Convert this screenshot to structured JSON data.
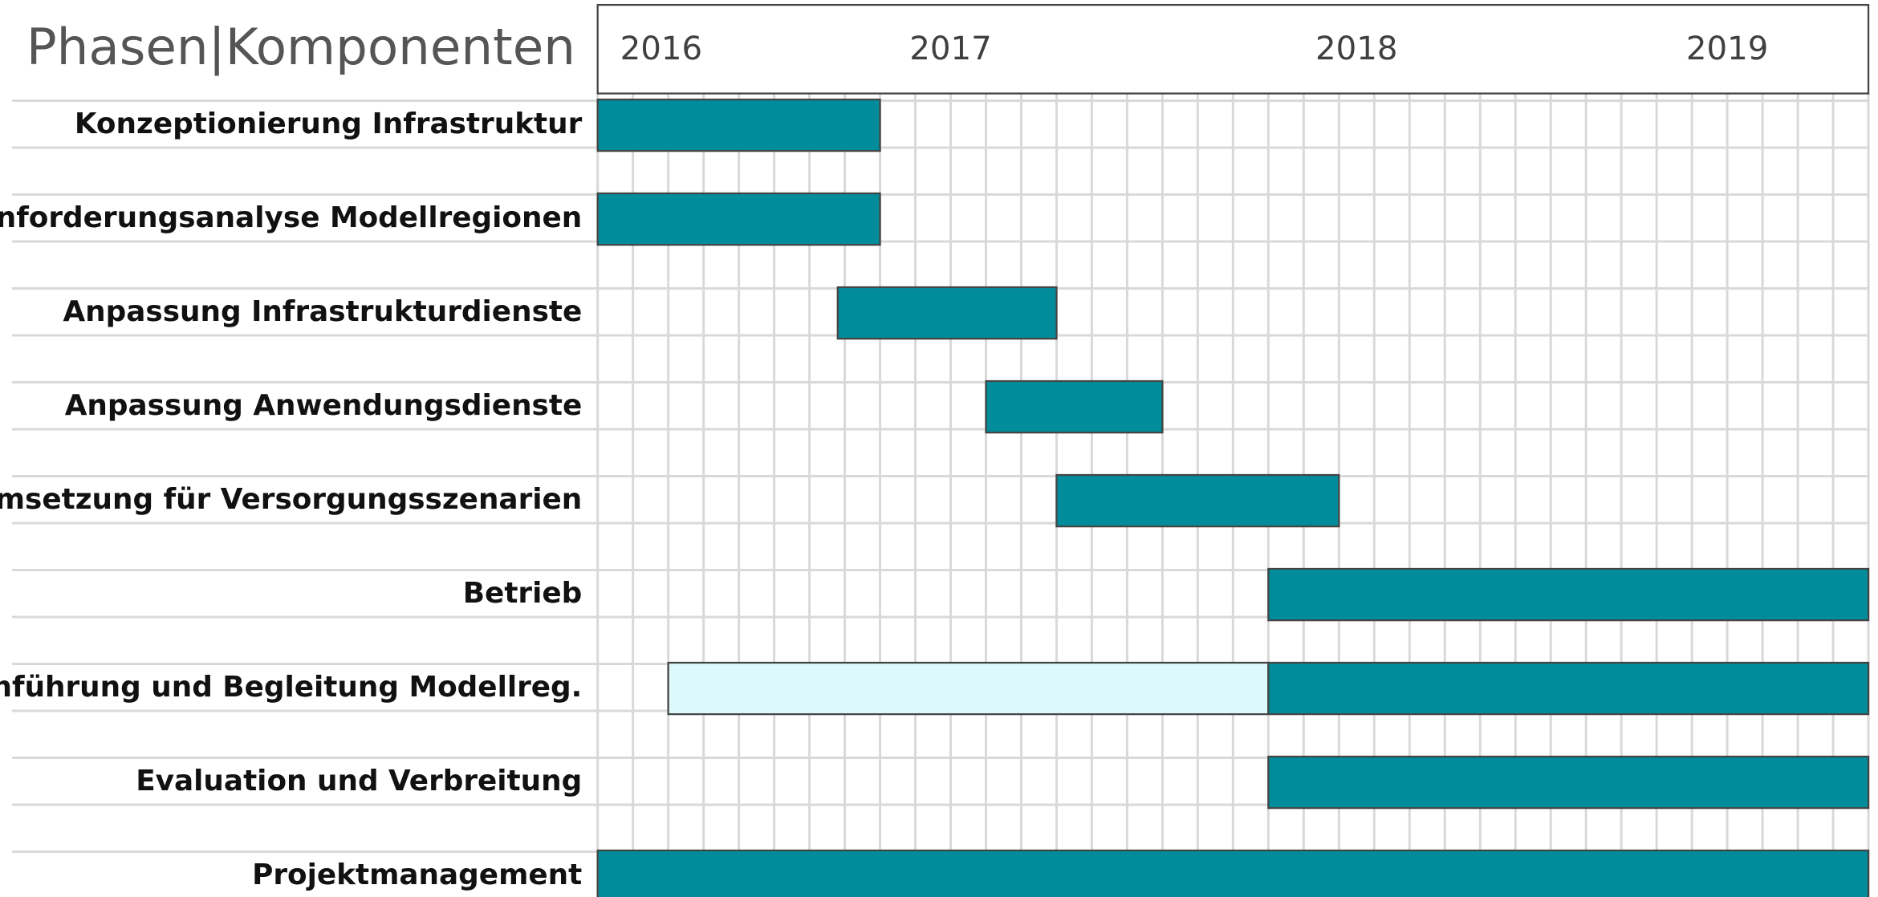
{
  "chart_data": {
    "type": "gantt",
    "title": "Phasen|Komponenten",
    "xlim": [
      0,
      36
    ],
    "xticks": [
      {
        "value": 1.8,
        "label": "2016"
      },
      {
        "value": 10,
        "label": "2017"
      },
      {
        "value": 21.5,
        "label": "2018"
      },
      {
        "value": 32,
        "label": "2019"
      }
    ],
    "grid": true,
    "tasks": [
      {
        "name": "Konzeptionierung Infrastruktur",
        "segments": [
          {
            "start": 0,
            "end": 8,
            "color": "#008c9a"
          }
        ]
      },
      {
        "name": "Anforderungsanalyse Modellregionen",
        "segments": [
          {
            "start": 0,
            "end": 8,
            "color": "#008c9a"
          }
        ]
      },
      {
        "name": "Anpassung Infrastrukturdienste",
        "segments": [
          {
            "start": 6.8,
            "end": 13,
            "color": "#008c9a"
          }
        ]
      },
      {
        "name": "Anpassung Anwendungsdienste",
        "segments": [
          {
            "start": 11,
            "end": 16,
            "color": "#008c9a"
          }
        ]
      },
      {
        "name": "Umsetzung für Versorgungsszenarien",
        "segments": [
          {
            "start": 13,
            "end": 21,
            "color": "#008c9a"
          }
        ]
      },
      {
        "name": "Betrieb",
        "segments": [
          {
            "start": 19,
            "end": 36,
            "color": "#008c9a"
          }
        ]
      },
      {
        "name": "Einführung und Begleitung Modellreg.",
        "segments": [
          {
            "start": 2,
            "end": 19,
            "color": "#dcfafc"
          },
          {
            "start": 19,
            "end": 36,
            "color": "#008c9a"
          }
        ]
      },
      {
        "name": "Evaluation und Verbreitung",
        "segments": [
          {
            "start": 19,
            "end": 36,
            "color": "#008c9a"
          }
        ]
      },
      {
        "name": "Projektmanagement",
        "segments": [
          {
            "start": 0,
            "end": 36,
            "color": "#008c9a"
          }
        ]
      }
    ]
  }
}
